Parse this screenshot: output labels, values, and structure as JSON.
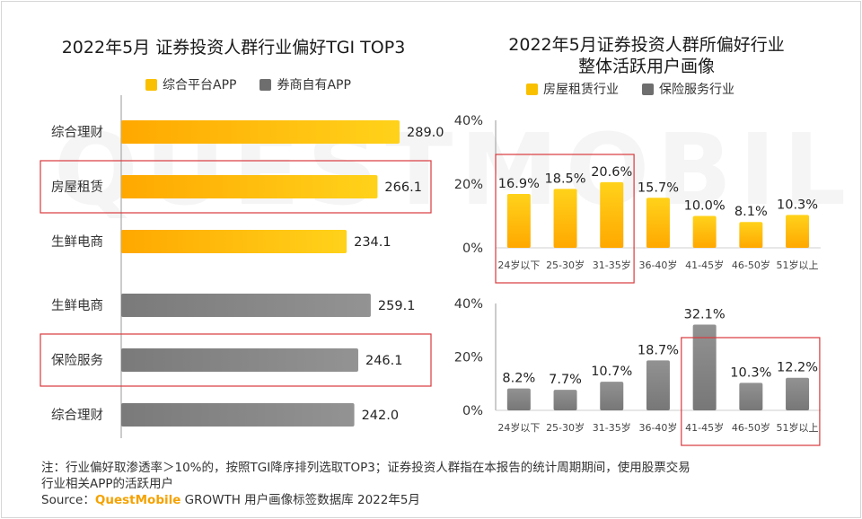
{
  "colors": {
    "yellow": "#f9c000",
    "gray": "#8a8a8a",
    "highlight": "#d9383c",
    "axis": "#999999"
  },
  "watermark": "QUESTMOBILE",
  "left": {
    "title": "2022年5月 证券投资人群行业偏好TGI TOP3",
    "legend": [
      "综合平台APP",
      "券商自有APP"
    ],
    "chart_data": {
      "type": "bar",
      "orientation": "horizontal",
      "xlim": [
        0,
        300
      ],
      "groups": [
        {
          "name": "综合平台APP",
          "color": "yellow",
          "categories": [
            "综合理财",
            "房屋租赁",
            "生鲜电商"
          ],
          "values": [
            289.0,
            266.1,
            234.1
          ],
          "value_labels": [
            "289.0",
            "266.1",
            "234.1"
          ],
          "highlight_index": 1
        },
        {
          "name": "券商自有APP",
          "color": "gray",
          "categories": [
            "生鲜电商",
            "保险服务",
            "综合理财"
          ],
          "values": [
            259.1,
            246.1,
            242.0
          ],
          "value_labels": [
            "259.1",
            "246.1",
            "242.0"
          ],
          "highlight_index": 1
        }
      ]
    }
  },
  "right": {
    "title_line1": "2022年5月证券投资人群所偏好行业",
    "title_line2": "整体活跃用户画像",
    "legend": [
      "房屋租赁行业",
      "保险服务行业"
    ],
    "chart_data": [
      {
        "type": "bar",
        "name": "房屋租赁行业",
        "color": "yellow",
        "ylim": [
          0,
          40
        ],
        "yticks": [
          "40%",
          "20%",
          "0%"
        ],
        "categories": [
          "24岁以下",
          "25-30岁",
          "31-35岁",
          "36-40岁",
          "41-45岁",
          "46-50岁",
          "51岁以上"
        ],
        "values": [
          16.9,
          18.5,
          20.6,
          15.7,
          10.0,
          8.1,
          10.3
        ],
        "value_labels": [
          "16.9%",
          "18.5%",
          "20.6%",
          "15.7%",
          "10.0%",
          "8.1%",
          "10.3%"
        ],
        "highlight_range": [
          0,
          2
        ]
      },
      {
        "type": "bar",
        "name": "保险服务行业",
        "color": "gray",
        "ylim": [
          0,
          40
        ],
        "yticks": [
          "40%",
          "20%",
          "0%"
        ],
        "categories": [
          "24岁以下",
          "25-30岁",
          "31-35岁",
          "36-40岁",
          "41-45岁",
          "46-50岁",
          "51岁以上"
        ],
        "values": [
          8.2,
          7.7,
          10.7,
          18.7,
          32.1,
          10.3,
          12.2
        ],
        "value_labels": [
          "8.2%",
          "7.7%",
          "10.7%",
          "18.7%",
          "32.1%",
          "10.3%",
          "12.2%"
        ],
        "highlight_range": [
          4,
          6
        ]
      }
    ]
  },
  "footer": {
    "note_line1": "注：行业偏好取渗透率＞10%的，按照TGI降序排列选取TOP3；证券投资人群指在本报告的统计周期期间，使用股票交易",
    "note_line2": "行业相关APP的活跃用户",
    "source_label": "Source：",
    "source_brand": "QuestMobile",
    "source_text": " GROWTH 用户画像标签数据库 2022年5月"
  }
}
